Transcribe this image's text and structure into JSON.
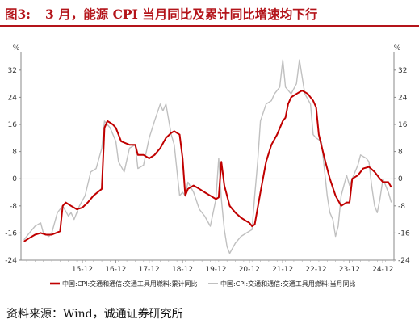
{
  "title": {
    "figure_number": "图3:",
    "text": "3 月，能源 CPI 当月同比及累计同比增速均下行"
  },
  "source": "资料来源：Wind，诚通证券研究所",
  "colors": {
    "title": "#b4141a",
    "cumulative": "#c00000",
    "monthly": "#c0c0c0"
  },
  "chart_data": {
    "type": "line",
    "y_unit_left": "%",
    "y_unit_right": "%",
    "ylim": [
      -24,
      36
    ],
    "yticks": [
      -24,
      -16,
      -8,
      0,
      8,
      16,
      24,
      32
    ],
    "xlim": [
      2014.08,
      2025.25
    ],
    "xticks": [
      {
        "label": "15-12",
        "x": 2015.917
      },
      {
        "label": "16-12",
        "x": 2016.917
      },
      {
        "label": "17-12",
        "x": 2017.917
      },
      {
        "label": "18-12",
        "x": 2018.917
      },
      {
        "label": "19-12",
        "x": 2019.917
      },
      {
        "label": "20-12",
        "x": 2020.917
      },
      {
        "label": "21-12",
        "x": 2021.917
      },
      {
        "label": "22-12",
        "x": 2022.917
      },
      {
        "label": "23-12",
        "x": 2023.917
      },
      {
        "label": "24-12",
        "x": 2024.917
      }
    ],
    "legend_position": "bottom",
    "series": [
      {
        "name": "中国:CPI:交通和通信:交通工具用燃料:累计同比",
        "color": "#c00000",
        "points": [
          [
            2014.17,
            -18.5
          ],
          [
            2014.33,
            -17.5
          ],
          [
            2014.5,
            -16.5
          ],
          [
            2014.67,
            -16
          ],
          [
            2014.83,
            -16.5
          ],
          [
            2015.0,
            -16.5
          ],
          [
            2015.25,
            -15.5
          ],
          [
            2015.33,
            -8
          ],
          [
            2015.42,
            -7
          ],
          [
            2015.58,
            -8
          ],
          [
            2015.75,
            -9
          ],
          [
            2015.92,
            -8.5
          ],
          [
            2016.08,
            -7
          ],
          [
            2016.25,
            -5
          ],
          [
            2016.5,
            -3
          ],
          [
            2016.58,
            15
          ],
          [
            2016.67,
            17
          ],
          [
            2016.83,
            16
          ],
          [
            2016.92,
            15
          ],
          [
            2017.08,
            11
          ],
          [
            2017.33,
            10
          ],
          [
            2017.5,
            10
          ],
          [
            2017.58,
            7
          ],
          [
            2017.75,
            7
          ],
          [
            2017.92,
            6
          ],
          [
            2018.08,
            7
          ],
          [
            2018.25,
            9
          ],
          [
            2018.42,
            12
          ],
          [
            2018.58,
            13.5
          ],
          [
            2018.67,
            14
          ],
          [
            2018.83,
            13
          ],
          [
            2018.92,
            6
          ],
          [
            2019.0,
            -5
          ],
          [
            2019.08,
            -3
          ],
          [
            2019.25,
            -2
          ],
          [
            2019.42,
            -3
          ],
          [
            2019.58,
            -4
          ],
          [
            2019.75,
            -5
          ],
          [
            2019.92,
            -6
          ],
          [
            2020.0,
            -5.5
          ],
          [
            2020.08,
            5
          ],
          [
            2020.17,
            -2
          ],
          [
            2020.33,
            -8
          ],
          [
            2020.5,
            -10
          ],
          [
            2020.67,
            -11.5
          ],
          [
            2020.83,
            -12.5
          ],
          [
            2020.92,
            -13
          ],
          [
            2021.0,
            -14
          ],
          [
            2021.08,
            -13.5
          ],
          [
            2021.25,
            -4
          ],
          [
            2021.42,
            5
          ],
          [
            2021.58,
            10
          ],
          [
            2021.75,
            13
          ],
          [
            2021.92,
            17
          ],
          [
            2022.0,
            18
          ],
          [
            2022.08,
            22
          ],
          [
            2022.17,
            24
          ],
          [
            2022.33,
            25
          ],
          [
            2022.5,
            26
          ],
          [
            2022.67,
            25
          ],
          [
            2022.83,
            23
          ],
          [
            2022.92,
            21
          ],
          [
            2023.0,
            13
          ],
          [
            2023.17,
            6
          ],
          [
            2023.33,
            0
          ],
          [
            2023.5,
            -5
          ],
          [
            2023.67,
            -8
          ],
          [
            2023.83,
            -7
          ],
          [
            2023.92,
            -7
          ],
          [
            2024.0,
            0
          ],
          [
            2024.17,
            1
          ],
          [
            2024.33,
            3
          ],
          [
            2024.5,
            3.5
          ],
          [
            2024.67,
            2
          ],
          [
            2024.83,
            0
          ],
          [
            2024.92,
            -1
          ],
          [
            2025.08,
            -1
          ],
          [
            2025.17,
            -2.5
          ]
        ]
      },
      {
        "name": "中国:CPI:交通和通信:交通工具用燃料:当月同比",
        "color": "#c0c0c0",
        "points": [
          [
            2014.17,
            -18
          ],
          [
            2014.33,
            -16
          ],
          [
            2014.5,
            -14
          ],
          [
            2014.67,
            -13
          ],
          [
            2014.75,
            -16
          ],
          [
            2014.92,
            -17
          ],
          [
            2015.0,
            -16
          ],
          [
            2015.17,
            -10
          ],
          [
            2015.33,
            -8
          ],
          [
            2015.5,
            -11
          ],
          [
            2015.58,
            -10
          ],
          [
            2015.67,
            -12
          ],
          [
            2015.83,
            -8
          ],
          [
            2016.0,
            -5
          ],
          [
            2016.17,
            2
          ],
          [
            2016.33,
            3
          ],
          [
            2016.5,
            9
          ],
          [
            2016.58,
            17
          ],
          [
            2016.75,
            15
          ],
          [
            2016.92,
            11
          ],
          [
            2017.0,
            5
          ],
          [
            2017.17,
            2
          ],
          [
            2017.33,
            9
          ],
          [
            2017.5,
            10
          ],
          [
            2017.58,
            3
          ],
          [
            2017.75,
            4
          ],
          [
            2017.92,
            12
          ],
          [
            2018.08,
            17
          ],
          [
            2018.25,
            22
          ],
          [
            2018.33,
            20
          ],
          [
            2018.42,
            22
          ],
          [
            2018.58,
            13
          ],
          [
            2018.67,
            10
          ],
          [
            2018.83,
            -5
          ],
          [
            2018.92,
            -4
          ],
          [
            2019.0,
            -5
          ],
          [
            2019.08,
            -1
          ],
          [
            2019.25,
            -4
          ],
          [
            2019.42,
            -9
          ],
          [
            2019.58,
            -11
          ],
          [
            2019.75,
            -14
          ],
          [
            2019.92,
            -6
          ],
          [
            2020.0,
            6
          ],
          [
            2020.08,
            -6
          ],
          [
            2020.17,
            -15
          ],
          [
            2020.25,
            -20
          ],
          [
            2020.33,
            -22
          ],
          [
            2020.5,
            -19
          ],
          [
            2020.67,
            -17
          ],
          [
            2020.83,
            -16
          ],
          [
            2021.0,
            -15
          ],
          [
            2021.08,
            -5
          ],
          [
            2021.17,
            5
          ],
          [
            2021.25,
            17
          ],
          [
            2021.42,
            22
          ],
          [
            2021.58,
            23
          ],
          [
            2021.67,
            25
          ],
          [
            2021.83,
            27
          ],
          [
            2021.92,
            35
          ],
          [
            2022.0,
            27
          ],
          [
            2022.17,
            25
          ],
          [
            2022.33,
            28
          ],
          [
            2022.42,
            35
          ],
          [
            2022.58,
            25
          ],
          [
            2022.75,
            22
          ],
          [
            2022.83,
            13
          ],
          [
            2022.92,
            12
          ],
          [
            2023.08,
            11
          ],
          [
            2023.25,
            -5
          ],
          [
            2023.33,
            -10
          ],
          [
            2023.42,
            -12
          ],
          [
            2023.5,
            -17
          ],
          [
            2023.58,
            -14
          ],
          [
            2023.67,
            -5
          ],
          [
            2023.83,
            1
          ],
          [
            2023.92,
            -2
          ],
          [
            2024.0,
            0
          ],
          [
            2024.17,
            4
          ],
          [
            2024.25,
            7
          ],
          [
            2024.42,
            6
          ],
          [
            2024.5,
            5
          ],
          [
            2024.58,
            -2
          ],
          [
            2024.67,
            -8
          ],
          [
            2024.75,
            -10
          ],
          [
            2024.83,
            -6
          ],
          [
            2024.92,
            0
          ],
          [
            2025.08,
            -4
          ],
          [
            2025.17,
            -7
          ]
        ]
      }
    ]
  }
}
